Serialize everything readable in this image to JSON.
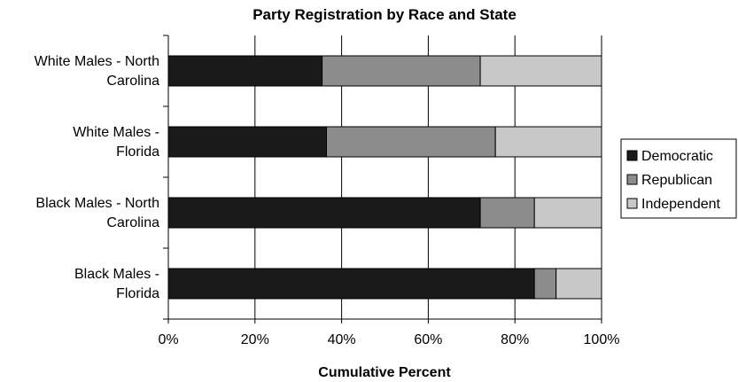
{
  "chart_data": {
    "type": "bar",
    "orientation": "horizontal",
    "stacked": true,
    "title": "Party Registration by Race and State",
    "xlabel": "Cumulative Percent",
    "ylabel": "",
    "xlim": [
      0,
      100
    ],
    "x_ticks": [
      "0%",
      "20%",
      "40%",
      "60%",
      "80%",
      "100%"
    ],
    "categories": [
      [
        "White Males - North",
        "Carolina"
      ],
      [
        "White Males -",
        "Florida"
      ],
      [
        "Black Males - North",
        "Carolina"
      ],
      [
        "Black Males -",
        "Florida"
      ]
    ],
    "series": [
      {
        "name": "Democratic",
        "color": "#1a1a1a",
        "values": [
          35.5,
          36.5,
          72.0,
          84.5
        ]
      },
      {
        "name": "Republican",
        "color": "#8c8c8c",
        "values": [
          36.5,
          39.0,
          12.5,
          5.0
        ]
      },
      {
        "name": "Independent",
        "color": "#c8c8c8",
        "values": [
          28.0,
          24.5,
          15.5,
          10.5
        ]
      }
    ],
    "grid": true,
    "legend_position": "right"
  }
}
